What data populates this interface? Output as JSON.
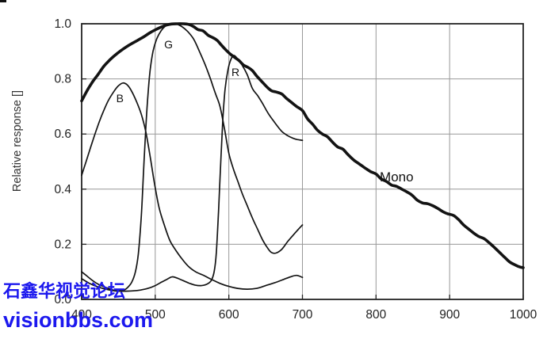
{
  "page": {
    "background": "#ffffff"
  },
  "watermark": {
    "line1": "石鑫华视觉论坛",
    "line2": "visionbbs.com",
    "color": "#1c18ee"
  },
  "chart_data": {
    "type": "line",
    "title": "",
    "xlabel": "",
    "ylabel": "Relative response []",
    "xlim": [
      400,
      1000
    ],
    "ylim": [
      0,
      1.0
    ],
    "x_ticks": [
      400,
      500,
      600,
      700,
      800,
      900,
      1000
    ],
    "x_tick_labels": [
      "400",
      "500",
      "600",
      "700",
      "800",
      "900",
      "1000"
    ],
    "y_ticks": [
      0,
      0.2,
      0.4,
      0.6,
      0.8,
      1.0
    ],
    "y_tick_labels": [
      "0.0",
      "0.2",
      "0.4",
      "0.6",
      "0.8",
      "1.0"
    ],
    "grid": true,
    "legend_position": "inline-curve-labels",
    "axis_color": "#222222",
    "grid_color": "#989898",
    "curve_color": "#131313",
    "series": [
      {
        "name": "B",
        "width": 1.7,
        "label": {
          "x": 452,
          "y": 0.73,
          "size": 14
        },
        "points": [
          [
            400,
            0.45
          ],
          [
            406,
            0.5
          ],
          [
            412,
            0.55
          ],
          [
            420,
            0.615
          ],
          [
            428,
            0.672
          ],
          [
            436,
            0.72
          ],
          [
            444,
            0.755
          ],
          [
            450,
            0.775
          ],
          [
            456,
            0.785
          ],
          [
            462,
            0.778
          ],
          [
            468,
            0.755
          ],
          [
            475,
            0.715
          ],
          [
            481,
            0.672
          ],
          [
            487,
            0.61
          ],
          [
            493,
            0.52
          ],
          [
            499,
            0.42
          ],
          [
            505,
            0.335
          ],
          [
            512,
            0.272
          ],
          [
            520,
            0.213
          ],
          [
            528,
            0.178
          ],
          [
            536,
            0.148
          ],
          [
            545,
            0.12
          ],
          [
            555,
            0.1
          ],
          [
            565,
            0.088
          ],
          [
            576,
            0.073
          ],
          [
            588,
            0.058
          ],
          [
            600,
            0.047
          ],
          [
            612,
            0.04
          ],
          [
            625,
            0.037
          ],
          [
            638,
            0.04
          ],
          [
            650,
            0.05
          ],
          [
            662,
            0.06
          ],
          [
            674,
            0.072
          ],
          [
            684,
            0.082
          ],
          [
            692,
            0.087
          ],
          [
            700,
            0.08
          ]
        ]
      },
      {
        "name": "G",
        "width": 1.7,
        "label": {
          "x": 518,
          "y": 0.925,
          "size": 14
        },
        "points": [
          [
            400,
            0.1
          ],
          [
            408,
            0.083
          ],
          [
            416,
            0.066
          ],
          [
            424,
            0.053
          ],
          [
            432,
            0.044
          ],
          [
            440,
            0.036
          ],
          [
            448,
            0.031
          ],
          [
            456,
            0.032
          ],
          [
            462,
            0.042
          ],
          [
            468,
            0.062
          ],
          [
            473,
            0.1
          ],
          [
            477,
            0.165
          ],
          [
            481,
            0.3
          ],
          [
            484,
            0.46
          ],
          [
            487,
            0.615
          ],
          [
            490,
            0.74
          ],
          [
            493,
            0.83
          ],
          [
            497,
            0.9
          ],
          [
            502,
            0.945
          ],
          [
            508,
            0.975
          ],
          [
            514,
            0.992
          ],
          [
            520,
            1.0
          ],
          [
            528,
            1.0
          ],
          [
            536,
            0.99
          ],
          [
            544,
            0.972
          ],
          [
            552,
            0.945
          ],
          [
            560,
            0.9
          ],
          [
            568,
            0.85
          ],
          [
            575,
            0.8
          ],
          [
            582,
            0.745
          ],
          [
            588,
            0.7
          ],
          [
            594,
            0.62
          ],
          [
            600,
            0.53
          ],
          [
            606,
            0.475
          ],
          [
            612,
            0.43
          ],
          [
            618,
            0.385
          ],
          [
            625,
            0.34
          ],
          [
            632,
            0.295
          ],
          [
            639,
            0.255
          ],
          [
            646,
            0.215
          ],
          [
            653,
            0.185
          ],
          [
            658,
            0.17
          ],
          [
            664,
            0.168
          ],
          [
            672,
            0.182
          ],
          [
            680,
            0.21
          ],
          [
            688,
            0.235
          ],
          [
            694,
            0.253
          ],
          [
            700,
            0.27
          ]
        ]
      },
      {
        "name": "R",
        "width": 1.7,
        "label": {
          "x": 609,
          "y": 0.825,
          "size": 14
        },
        "points": [
          [
            400,
            0.075
          ],
          [
            410,
            0.059
          ],
          [
            420,
            0.047
          ],
          [
            430,
            0.039
          ],
          [
            440,
            0.033
          ],
          [
            450,
            0.03
          ],
          [
            460,
            0.03
          ],
          [
            470,
            0.031
          ],
          [
            480,
            0.034
          ],
          [
            490,
            0.04
          ],
          [
            500,
            0.05
          ],
          [
            508,
            0.062
          ],
          [
            516,
            0.073
          ],
          [
            523,
            0.082
          ],
          [
            530,
            0.077
          ],
          [
            538,
            0.068
          ],
          [
            546,
            0.059
          ],
          [
            554,
            0.052
          ],
          [
            562,
            0.05
          ],
          [
            570,
            0.055
          ],
          [
            576,
            0.068
          ],
          [
            580,
            0.1
          ],
          [
            583,
            0.17
          ],
          [
            586,
            0.32
          ],
          [
            589,
            0.5
          ],
          [
            592,
            0.66
          ],
          [
            595,
            0.765
          ],
          [
            599,
            0.835
          ],
          [
            603,
            0.872
          ],
          [
            607,
            0.885
          ],
          [
            612,
            0.872
          ],
          [
            618,
            0.85
          ],
          [
            625,
            0.815
          ],
          [
            632,
            0.765
          ],
          [
            639,
            0.74
          ],
          [
            646,
            0.71
          ],
          [
            653,
            0.677
          ],
          [
            660,
            0.65
          ],
          [
            667,
            0.625
          ],
          [
            673,
            0.607
          ],
          [
            680,
            0.594
          ],
          [
            687,
            0.585
          ],
          [
            693,
            0.58
          ],
          [
            700,
            0.577
          ]
        ]
      },
      {
        "name": "Mono",
        "width": 3.6,
        "label": {
          "x": 828,
          "y": 0.445,
          "size": 17
        },
        "points": [
          [
            400,
            0.72
          ],
          [
            408,
            0.76
          ],
          [
            415,
            0.79
          ],
          [
            422,
            0.815
          ],
          [
            430,
            0.845
          ],
          [
            438,
            0.868
          ],
          [
            445,
            0.885
          ],
          [
            452,
            0.9
          ],
          [
            460,
            0.915
          ],
          [
            468,
            0.928
          ],
          [
            476,
            0.94
          ],
          [
            484,
            0.952
          ],
          [
            492,
            0.966
          ],
          [
            500,
            0.978
          ],
          [
            508,
            0.988
          ],
          [
            515,
            0.995
          ],
          [
            522,
            0.999
          ],
          [
            530,
            1.0
          ],
          [
            538,
            1.0
          ],
          [
            545,
            0.998
          ],
          [
            552,
            0.99
          ],
          [
            558,
            0.979
          ],
          [
            565,
            0.974
          ],
          [
            572,
            0.958
          ],
          [
            578,
            0.95
          ],
          [
            584,
            0.94
          ],
          [
            590,
            0.922
          ],
          [
            596,
            0.905
          ],
          [
            602,
            0.89
          ],
          [
            608,
            0.878
          ],
          [
            614,
            0.866
          ],
          [
            620,
            0.85
          ],
          [
            626,
            0.842
          ],
          [
            632,
            0.83
          ],
          [
            638,
            0.81
          ],
          [
            645,
            0.79
          ],
          [
            652,
            0.77
          ],
          [
            658,
            0.757
          ],
          [
            665,
            0.752
          ],
          [
            672,
            0.745
          ],
          [
            678,
            0.73
          ],
          [
            685,
            0.715
          ],
          [
            692,
            0.7
          ],
          [
            700,
            0.685
          ],
          [
            707,
            0.655
          ],
          [
            714,
            0.635
          ],
          [
            720,
            0.615
          ],
          [
            727,
            0.6
          ],
          [
            734,
            0.59
          ],
          [
            741,
            0.57
          ],
          [
            748,
            0.553
          ],
          [
            755,
            0.545
          ],
          [
            762,
            0.525
          ],
          [
            770,
            0.505
          ],
          [
            778,
            0.49
          ],
          [
            786,
            0.475
          ],
          [
            793,
            0.463
          ],
          [
            800,
            0.455
          ],
          [
            807,
            0.437
          ],
          [
            814,
            0.428
          ],
          [
            821,
            0.415
          ],
          [
            828,
            0.41
          ],
          [
            835,
            0.4
          ],
          [
            842,
            0.39
          ],
          [
            849,
            0.378
          ],
          [
            856,
            0.36
          ],
          [
            863,
            0.35
          ],
          [
            870,
            0.347
          ],
          [
            877,
            0.34
          ],
          [
            884,
            0.33
          ],
          [
            891,
            0.318
          ],
          [
            898,
            0.31
          ],
          [
            905,
            0.305
          ],
          [
            912,
            0.29
          ],
          [
            919,
            0.27
          ],
          [
            926,
            0.255
          ],
          [
            933,
            0.24
          ],
          [
            940,
            0.228
          ],
          [
            947,
            0.22
          ],
          [
            954,
            0.205
          ],
          [
            961,
            0.188
          ],
          [
            968,
            0.17
          ],
          [
            975,
            0.152
          ],
          [
            982,
            0.135
          ],
          [
            989,
            0.125
          ],
          [
            995,
            0.118
          ],
          [
            1000,
            0.115
          ]
        ]
      }
    ]
  }
}
